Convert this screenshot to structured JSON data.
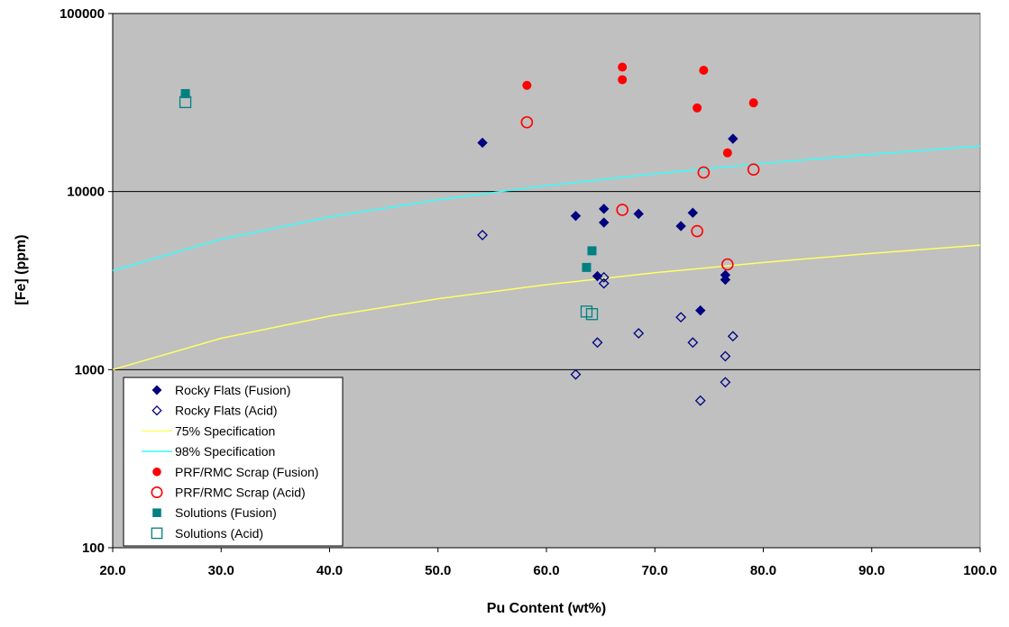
{
  "chart_data": {
    "type": "scatter",
    "title": "",
    "xlabel": "Pu Content (wt%)",
    "ylabel": "[Fe] (ppm)",
    "xlim": [
      20,
      100
    ],
    "ylim": [
      100,
      100000
    ],
    "yscale": "log",
    "x_ticks": [
      "20.0",
      "30.0",
      "40.0",
      "50.0",
      "60.0",
      "70.0",
      "80.0",
      "90.0",
      "100.0"
    ],
    "y_ticks": [
      "100",
      "1000",
      "10000",
      "100000"
    ],
    "grid": "horizontal major lines",
    "plot_background": "#c0c0c0",
    "legend_position": "bottom-left",
    "series": [
      {
        "name": "Rocky Flats (Fusion)",
        "marker": "diamond-filled",
        "color": "#000080",
        "points": [
          [
            54.1,
            18800
          ],
          [
            62.7,
            7300
          ],
          [
            65.3,
            8000
          ],
          [
            65.3,
            6700
          ],
          [
            68.5,
            7500
          ],
          [
            72.4,
            6400
          ],
          [
            73.5,
            7600
          ],
          [
            77.2,
            19800
          ],
          [
            64.7,
            3350
          ],
          [
            76.5,
            3400
          ],
          [
            76.5,
            3200
          ],
          [
            74.2,
            2150
          ]
        ]
      },
      {
        "name": "Rocky Flats (Acid)",
        "marker": "diamond-open",
        "color": "#000080",
        "points": [
          [
            54.1,
            5700
          ],
          [
            65.3,
            3300
          ],
          [
            65.3,
            3050
          ],
          [
            64.7,
            1420
          ],
          [
            68.5,
            1600
          ],
          [
            72.4,
            1970
          ],
          [
            73.5,
            1420
          ],
          [
            77.2,
            1540
          ],
          [
            76.5,
            1190
          ],
          [
            62.7,
            940
          ],
          [
            76.5,
            850
          ],
          [
            74.2,
            670
          ]
        ]
      },
      {
        "name": "75% Specification",
        "line": true,
        "color": "#ffff66",
        "points": [
          [
            20,
            1000
          ],
          [
            30,
            1500
          ],
          [
            40,
            2000
          ],
          [
            50,
            2500
          ],
          [
            60,
            3000
          ],
          [
            70,
            3500
          ],
          [
            80,
            4000
          ],
          [
            90,
            4500
          ],
          [
            100,
            5000
          ]
        ]
      },
      {
        "name": "98% Specification",
        "line": true,
        "color": "#33ffff",
        "points": [
          [
            20,
            3600
          ],
          [
            30,
            5400
          ],
          [
            40,
            7200
          ],
          [
            50,
            9000
          ],
          [
            60,
            10800
          ],
          [
            70,
            12600
          ],
          [
            80,
            14400
          ],
          [
            90,
            16200
          ],
          [
            100,
            18000
          ]
        ]
      },
      {
        "name": "PRF/RMC Scrap (Fusion)",
        "marker": "circle-filled",
        "color": "#ff0000",
        "points": [
          [
            58.2,
            39500
          ],
          [
            67.0,
            50000
          ],
          [
            67.0,
            42500
          ],
          [
            74.5,
            48000
          ],
          [
            73.9,
            29500
          ],
          [
            79.1,
            31500
          ],
          [
            76.7,
            16500
          ]
        ]
      },
      {
        "name": "PRF/RMC Scrap (Acid)",
        "marker": "circle-open",
        "color": "#ff0000",
        "points": [
          [
            58.2,
            24500
          ],
          [
            74.5,
            12800
          ],
          [
            79.1,
            13300
          ],
          [
            67.0,
            7900
          ],
          [
            73.9,
            6000
          ],
          [
            76.7,
            3900
          ]
        ]
      },
      {
        "name": "Solutions (Fusion)",
        "marker": "square-filled",
        "color": "#008080",
        "points": [
          [
            26.7,
            35500
          ],
          [
            64.2,
            4650
          ],
          [
            63.7,
            3750
          ]
        ]
      },
      {
        "name": "Solutions (Acid)",
        "marker": "square-open",
        "color": "#008080",
        "points": [
          [
            26.7,
            31800
          ],
          [
            63.7,
            2120
          ],
          [
            64.2,
            2050
          ]
        ]
      }
    ]
  }
}
